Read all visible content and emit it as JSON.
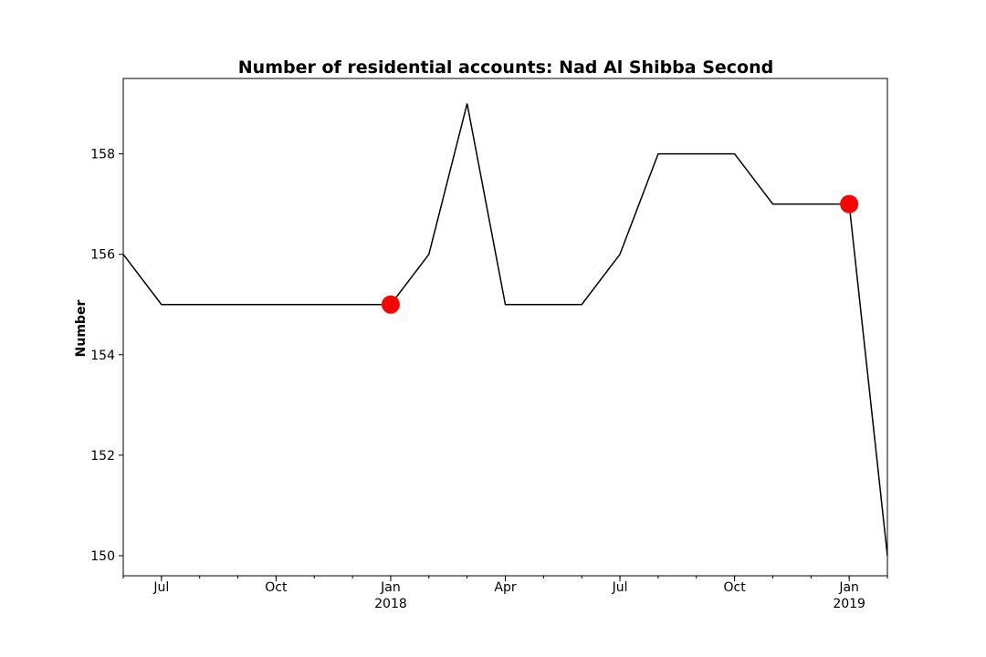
{
  "chart_data": {
    "type": "line",
    "title": "Number of residential accounts: Nad Al Shibba Second",
    "xlabel": "",
    "ylabel": "Number",
    "x": [
      "2017-06",
      "2017-07",
      "2017-08",
      "2017-09",
      "2017-10",
      "2017-11",
      "2017-12",
      "2018-01",
      "2018-02",
      "2018-03",
      "2018-04",
      "2018-05",
      "2018-06",
      "2018-07",
      "2018-08",
      "2018-09",
      "2018-10",
      "2018-11",
      "2018-12",
      "2019-01",
      "2019-02"
    ],
    "series": [
      {
        "values": [
          156,
          155,
          155,
          155,
          155,
          155,
          155,
          155,
          156,
          159,
          155,
          155,
          155,
          156,
          158,
          158,
          158,
          157,
          157,
          157,
          150
        ],
        "color": "#000000"
      }
    ],
    "highlights": [
      {
        "x": "2018-01",
        "y": 155,
        "color": "#ff0000"
      },
      {
        "x": "2019-01",
        "y": 157,
        "color": "#ff0000"
      }
    ],
    "xlim": [
      "2017-06",
      "2019-02"
    ],
    "ylim": [
      149.6,
      159.5
    ],
    "yticks": [
      150,
      152,
      154,
      156,
      158
    ],
    "xticks": [
      {
        "x": "2017-07",
        "label": "Jul",
        "sub": ""
      },
      {
        "x": "2017-10",
        "label": "Oct",
        "sub": ""
      },
      {
        "x": "2018-01",
        "label": "Jan",
        "sub": "2018"
      },
      {
        "x": "2018-04",
        "label": "Apr",
        "sub": ""
      },
      {
        "x": "2018-07",
        "label": "Jul",
        "sub": ""
      },
      {
        "x": "2018-10",
        "label": "Oct",
        "sub": ""
      },
      {
        "x": "2019-01",
        "label": "Jan",
        "sub": "2019"
      }
    ],
    "grid": false,
    "legend": "none"
  }
}
